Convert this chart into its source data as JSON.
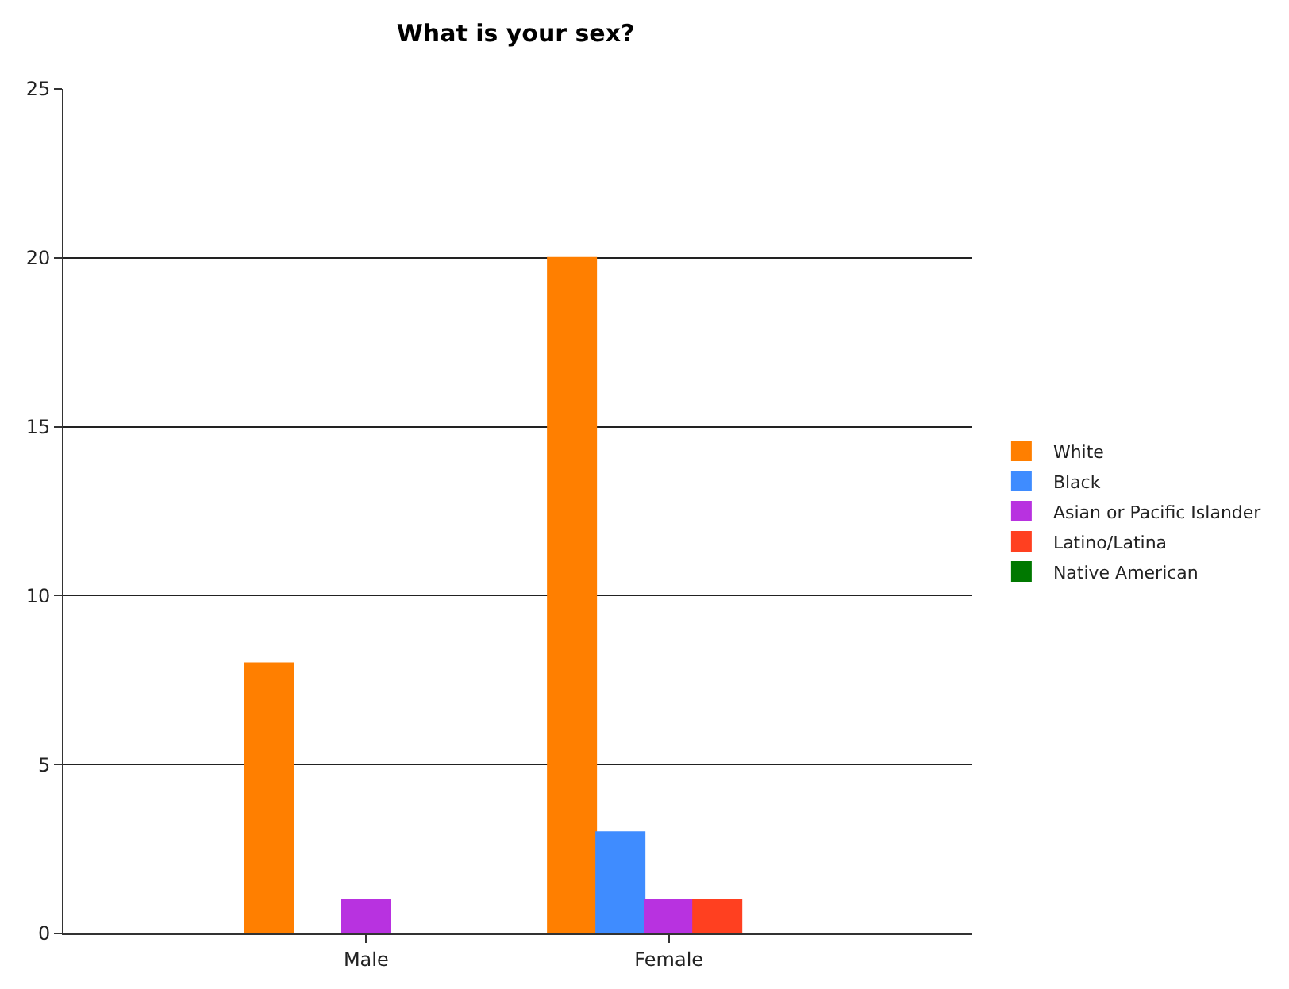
{
  "chart_data": {
    "type": "bar",
    "title": "What is your sex?",
    "categories": [
      "Male",
      "Female"
    ],
    "series": [
      {
        "name": "White",
        "color": "#ff7f00",
        "values": [
          8,
          20
        ]
      },
      {
        "name": "Black",
        "color": "#3f8cff",
        "values": [
          0,
          3
        ]
      },
      {
        "name": "Asian or Pacific Islander",
        "color": "#b832e0",
        "values": [
          1,
          1
        ]
      },
      {
        "name": "Latino/Latina",
        "color": "#ff4020",
        "values": [
          0,
          1
        ]
      },
      {
        "name": "Native American",
        "color": "#007800",
        "values": [
          0,
          0
        ]
      }
    ],
    "ylim": [
      0,
      25
    ],
    "yticks": [
      0,
      5,
      10,
      15,
      20,
      25
    ],
    "grid": "y",
    "legend": "right"
  }
}
